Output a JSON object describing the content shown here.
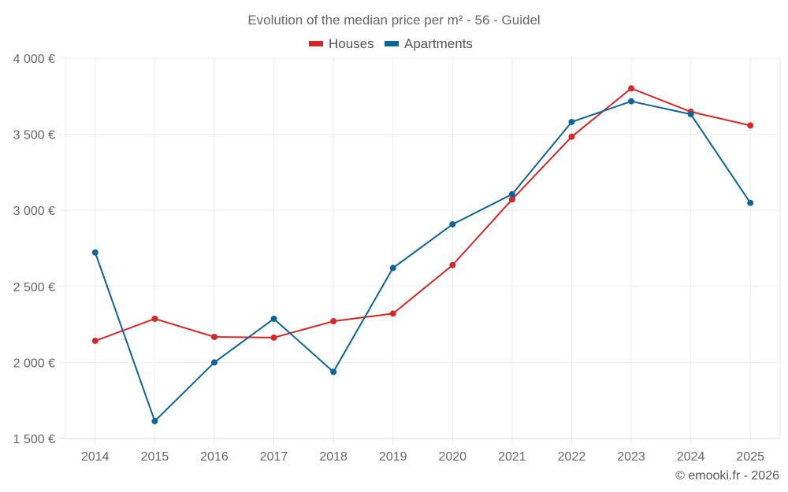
{
  "chart_data": {
    "type": "line",
    "title": "Evolution of the median price per m² - 56 - Guidel",
    "xlabel": "",
    "ylabel": "",
    "categories": [
      "2014",
      "2015",
      "2016",
      "2017",
      "2018",
      "2019",
      "2020",
      "2021",
      "2022",
      "2023",
      "2024",
      "2025"
    ],
    "series": [
      {
        "name": "Houses",
        "color": "#d62728",
        "values": [
          2142,
          2287,
          2168,
          2163,
          2271,
          2321,
          2640,
          3072,
          3484,
          3802,
          3648,
          3558
        ]
      },
      {
        "name": "Apartments",
        "color": "#0e6498",
        "values": [
          2723,
          1614,
          2000,
          2287,
          1938,
          2621,
          2908,
          3106,
          3581,
          3717,
          3632,
          3049
        ]
      }
    ],
    "ylim": [
      1500,
      4000
    ],
    "yticks": [
      1500,
      2000,
      2500,
      3000,
      3500,
      4000
    ],
    "ytick_labels": [
      "1 500 €",
      "2 000 €",
      "2 500 €",
      "3 000 €",
      "3 500 €",
      "4 000 €"
    ],
    "grid": true,
    "legend_position": "top-center",
    "credit": "© emooki.fr - 2026"
  }
}
